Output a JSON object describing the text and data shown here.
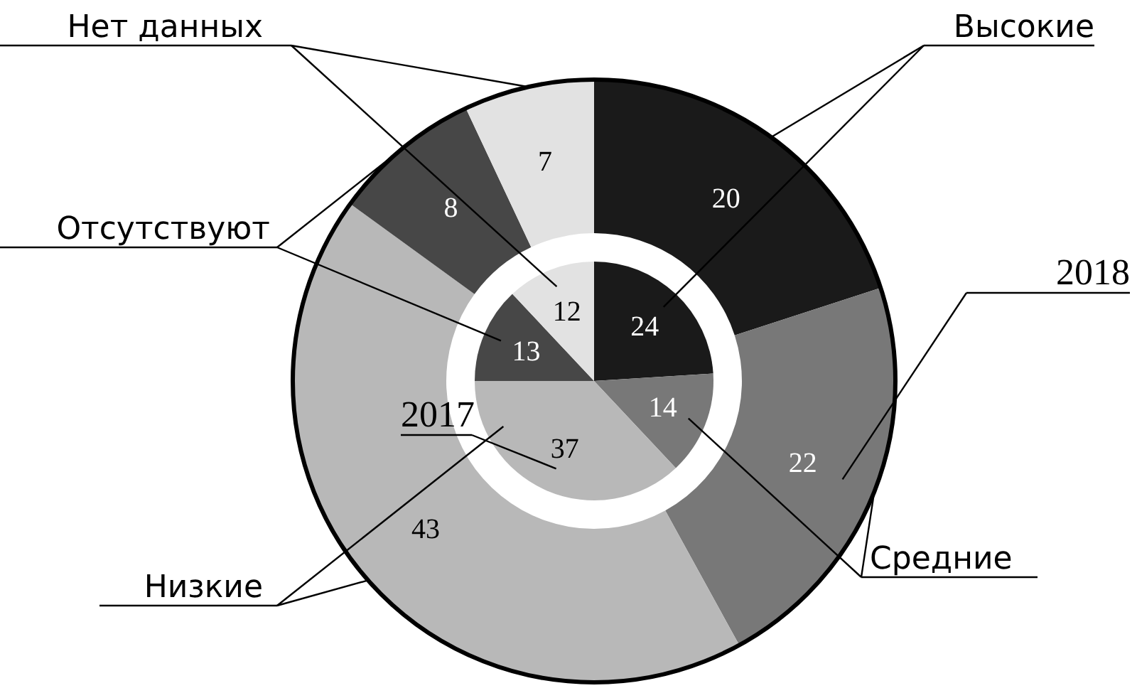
{
  "chart_data": {
    "type": "donut",
    "categories": [
      "Высокие",
      "Средние",
      "Низкие",
      "Отсутствуют",
      "Нет данных"
    ],
    "colors": [
      "#1a1a1a",
      "#787878",
      "#b8b8b8",
      "#474747",
      "#e2e2e2"
    ],
    "series": [
      {
        "name": "2017",
        "values": [
          24,
          14,
          37,
          13,
          12
        ]
      },
      {
        "name": "2018",
        "values": [
          20,
          22,
          43,
          8,
          7
        ]
      }
    ],
    "data_labels": true
  }
}
